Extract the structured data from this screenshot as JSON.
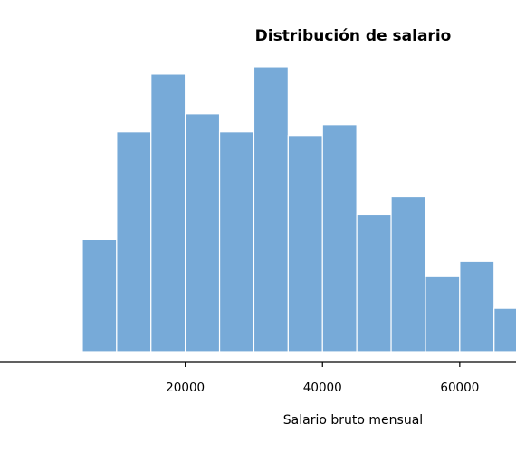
{
  "chart_data": {
    "type": "bar",
    "title": "Distribución de salario",
    "xlabel": "Salario bruto mensual",
    "ylabel": "",
    "bin_width": 5000,
    "bins": [
      {
        "start": 5000,
        "end": 10000,
        "count": 31
      },
      {
        "start": 10000,
        "end": 15000,
        "count": 61
      },
      {
        "start": 15000,
        "end": 20000,
        "count": 77
      },
      {
        "start": 20000,
        "end": 25000,
        "count": 66
      },
      {
        "start": 25000,
        "end": 30000,
        "count": 61
      },
      {
        "start": 30000,
        "end": 35000,
        "count": 79
      },
      {
        "start": 35000,
        "end": 40000,
        "count": 60
      },
      {
        "start": 40000,
        "end": 45000,
        "count": 63
      },
      {
        "start": 45000,
        "end": 50000,
        "count": 38
      },
      {
        "start": 50000,
        "end": 55000,
        "count": 43
      },
      {
        "start": 55000,
        "end": 60000,
        "count": 21
      },
      {
        "start": 60000,
        "end": 65000,
        "count": 25
      },
      {
        "start": 65000,
        "end": 70000,
        "count": 12
      }
    ],
    "x_ticks": [
      {
        "value": 20000,
        "label": "20000"
      },
      {
        "value": 40000,
        "label": "40000"
      },
      {
        "value": 60000,
        "label": "60000"
      }
    ],
    "xlim": [
      -7000,
      68200
    ],
    "ylim": [
      0,
      84
    ],
    "colors": {
      "bar_fill": "#77aad8",
      "bar_edge": "#ffffff",
      "axis": "#000000"
    },
    "grid": false,
    "legend": "none"
  }
}
